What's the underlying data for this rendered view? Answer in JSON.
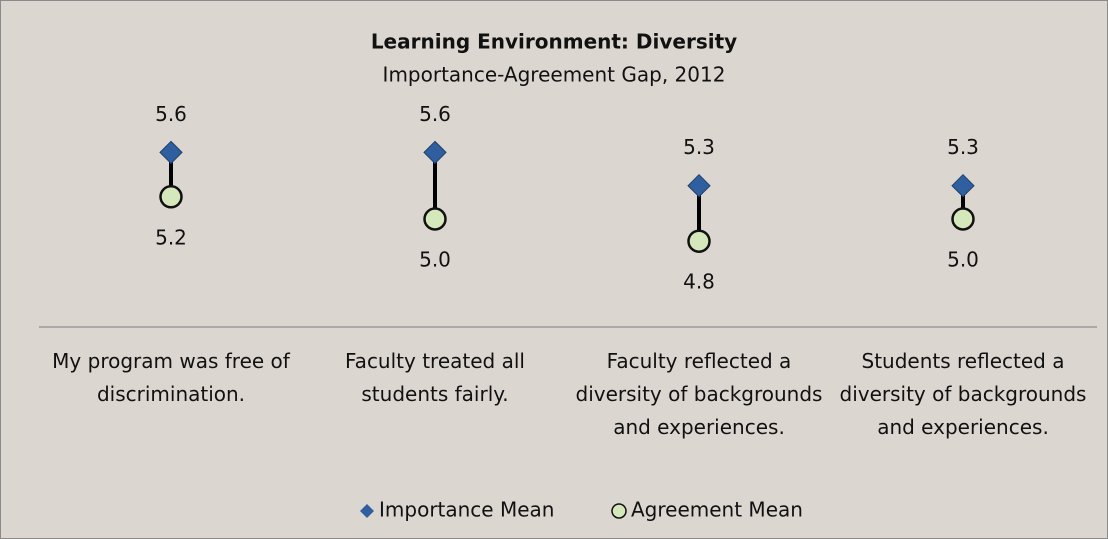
{
  "chart_data": {
    "type": "dumbbell",
    "title": "Learning Environment: Diversity",
    "subtitle": "Importance-Agreement Gap, 2012",
    "categories": [
      "My program was free of discrimination.",
      "Faculty treated all students fairly.",
      "Faculty reflected a diversity of backgrounds and experiences.",
      "Students reflected a diversity of backgrounds and experiences."
    ],
    "series": [
      {
        "name": "Importance Mean",
        "color": "#2f5f9e",
        "marker": "diamond",
        "values": [
          5.6,
          5.6,
          5.3,
          5.3
        ],
        "value_labels": [
          "5.6",
          "5.6",
          "5.3",
          "5.3"
        ]
      },
      {
        "name": "Agreement Mean",
        "color": "#d4e8bb",
        "marker": "circle",
        "values": [
          5.2,
          5.0,
          4.8,
          5.0
        ],
        "value_labels": [
          "5.2",
          "5.0",
          "4.8",
          "5.0"
        ]
      }
    ],
    "ylim": [
      4,
      6
    ],
    "legend": "bottom"
  }
}
